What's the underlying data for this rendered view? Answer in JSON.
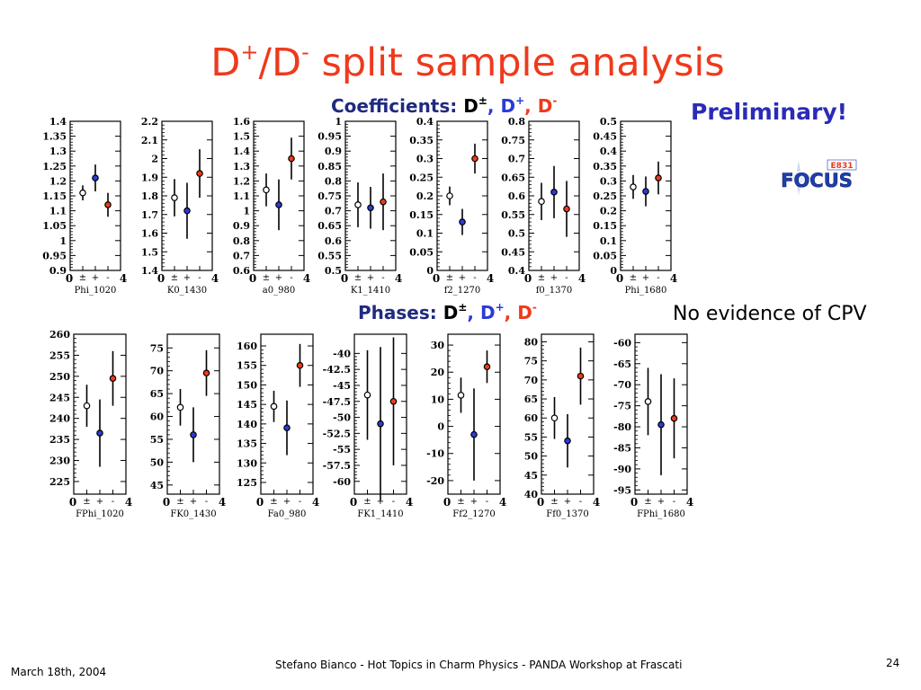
{
  "slide": {
    "title_main": "D",
    "title_sup1": "+",
    "title_mid": "/D",
    "title_sup2": "-",
    "title_tail": " split sample analysis",
    "coefficients_label": "Coefficients: ",
    "phases_label": "Phases: ",
    "d_pm": "D",
    "sup_pm": "±",
    "d_plus": ", D",
    "sup_plus": "+",
    "d_minus": ", D",
    "sup_minus": "-",
    "preliminary": "Preliminary!",
    "no_evidence": "No evidence  of CPV",
    "footer_date": "March 18th, 2004",
    "footer_center": "Stefano Bianco - Hot Topics in Charm Physics - PANDA Workshop at Frascati",
    "page_number": "24",
    "logo_text": "FOCUS",
    "logo_tag": "E831"
  },
  "colors": {
    "title": "#ee3a1c",
    "d_pm_marker": "#ffffff",
    "d_plus_marker": "#2b3bd6",
    "d_minus_marker": "#ee3a1c",
    "preliminary": "#2b2bb8",
    "logo_blue": "#1e3fae"
  },
  "chart_data": [
    {
      "row": "coefficients",
      "type": "scatter",
      "title": "Phi_1020",
      "ylim": [
        0.9,
        1.4
      ],
      "yticks": [
        "0.9",
        "0.95",
        "1",
        "1.05",
        "1.1",
        "1.15",
        "1.2",
        "1.25",
        "1.3",
        "1.35",
        "1.4"
      ],
      "xticks": [
        "0",
        "4"
      ],
      "categories": [
        "±",
        "+",
        "-"
      ],
      "x": [
        1,
        2,
        3
      ],
      "series": [
        {
          "name": "D±",
          "y": 1.16,
          "err": 0.025
        },
        {
          "name": "D+",
          "y": 1.21,
          "err": 0.045
        },
        {
          "name": "D-",
          "y": 1.12,
          "err": 0.04
        }
      ]
    },
    {
      "row": "coefficients",
      "type": "scatter",
      "title": "K0_1430",
      "ylim": [
        1.4,
        2.2
      ],
      "yticks": [
        "1.4",
        "1.5",
        "1.6",
        "1.7",
        "1.8",
        "1.9",
        "2",
        "2.1",
        "2.2"
      ],
      "xticks": [
        "0",
        "4"
      ],
      "categories": [
        "±",
        "+",
        "-"
      ],
      "x": [
        1,
        2,
        3
      ],
      "series": [
        {
          "name": "D±",
          "y": 1.79,
          "err": 0.1
        },
        {
          "name": "D+",
          "y": 1.72,
          "err": 0.15
        },
        {
          "name": "D-",
          "y": 1.92,
          "err": 0.13
        }
      ]
    },
    {
      "row": "coefficients",
      "type": "scatter",
      "title": "a0_980",
      "ylim": [
        0.6,
        1.6
      ],
      "yticks": [
        "0.6",
        "0.7",
        "0.8",
        "0.9",
        "1",
        "1.1",
        "1.2",
        "1.3",
        "1.4",
        "1.5",
        "1.6"
      ],
      "xticks": [
        "0",
        "4"
      ],
      "categories": [
        "±",
        "+",
        "-"
      ],
      "x": [
        1,
        2,
        3
      ],
      "series": [
        {
          "name": "D±",
          "y": 1.14,
          "err": 0.11
        },
        {
          "name": "D+",
          "y": 1.04,
          "err": 0.17
        },
        {
          "name": "D-",
          "y": 1.35,
          "err": 0.14
        }
      ]
    },
    {
      "row": "coefficients",
      "type": "scatter",
      "title": "K1_1410",
      "ylim": [
        0.5,
        1.0
      ],
      "yticks": [
        "0.5",
        "0.55",
        "0.6",
        "0.65",
        "0.7",
        "0.75",
        "0.8",
        "0.85",
        "0.9",
        "0.95",
        "1"
      ],
      "xticks": [
        "0",
        "4"
      ],
      "categories": [
        "±",
        "+",
        "-"
      ],
      "x": [
        1,
        2,
        3
      ],
      "series": [
        {
          "name": "D±",
          "y": 0.72,
          "err": 0.075
        },
        {
          "name": "D+",
          "y": 0.71,
          "err": 0.07
        },
        {
          "name": "D-",
          "y": 0.73,
          "err": 0.095
        }
      ]
    },
    {
      "row": "coefficients",
      "type": "scatter",
      "title": "f2_1270",
      "ylim": [
        0,
        0.4
      ],
      "yticks": [
        "0",
        "0.05",
        "0.1",
        "0.15",
        "0.2",
        "0.25",
        "0.3",
        "0.35",
        "0.4"
      ],
      "xticks": [
        "0",
        "4"
      ],
      "categories": [
        "±",
        "+",
        "-"
      ],
      "x": [
        1,
        2,
        3
      ],
      "series": [
        {
          "name": "D±",
          "y": 0.2,
          "err": 0.025
        },
        {
          "name": "D+",
          "y": 0.13,
          "err": 0.035
        },
        {
          "name": "D-",
          "y": 0.3,
          "err": 0.04
        }
      ]
    },
    {
      "row": "coefficients",
      "type": "scatter",
      "title": "f0_1370",
      "ylim": [
        0.4,
        0.8
      ],
      "yticks": [
        "0.4",
        "0.45",
        "0.5",
        "0.55",
        "0.6",
        "0.65",
        "0.7",
        "0.75",
        "0.8"
      ],
      "xticks": [
        "0",
        "4"
      ],
      "categories": [
        "±",
        "+",
        "-"
      ],
      "x": [
        1,
        2,
        3
      ],
      "series": [
        {
          "name": "D±",
          "y": 0.585,
          "err": 0.05
        },
        {
          "name": "D+",
          "y": 0.61,
          "err": 0.07
        },
        {
          "name": "D-",
          "y": 0.565,
          "err": 0.075
        }
      ]
    },
    {
      "row": "coefficients",
      "type": "scatter",
      "title": "Phi_1680",
      "ylim": [
        0,
        0.5
      ],
      "yticks": [
        "0",
        "0.05",
        "0.1",
        "0.15",
        "0.2",
        "0.25",
        "0.3",
        "0.35",
        "0.4",
        "0.45",
        "0.5"
      ],
      "xticks": [
        "0",
        "4"
      ],
      "categories": [
        "±",
        "+",
        "-"
      ],
      "x": [
        1,
        2,
        3
      ],
      "series": [
        {
          "name": "D±",
          "y": 0.28,
          "err": 0.04
        },
        {
          "name": "D+",
          "y": 0.265,
          "err": 0.05
        },
        {
          "name": "D-",
          "y": 0.31,
          "err": 0.055
        }
      ]
    },
    {
      "row": "phases",
      "type": "scatter",
      "title": "FPhi_1020",
      "ylim": [
        222,
        260
      ],
      "yticks": [
        "225",
        "230",
        "235",
        "240",
        "245",
        "250",
        "255",
        "260"
      ],
      "xticks": [
        "0",
        "4"
      ],
      "categories": [
        "±",
        "+",
        "-"
      ],
      "x": [
        1,
        2,
        3
      ],
      "series": [
        {
          "name": "D±",
          "y": 243,
          "err": 5
        },
        {
          "name": "D+",
          "y": 236.5,
          "err": 8
        },
        {
          "name": "D-",
          "y": 249.5,
          "err": 6.5
        }
      ]
    },
    {
      "row": "phases",
      "type": "scatter",
      "title": "FK0_1430",
      "ylim": [
        43,
        78
      ],
      "yticks": [
        "45",
        "50",
        "55",
        "60",
        "65",
        "70",
        "75"
      ],
      "xticks": [
        "0",
        "4"
      ],
      "categories": [
        "±",
        "+",
        "-"
      ],
      "x": [
        1,
        2,
        3
      ],
      "series": [
        {
          "name": "D±",
          "y": 62,
          "err": 4
        },
        {
          "name": "D+",
          "y": 56,
          "err": 6
        },
        {
          "name": "D-",
          "y": 69.5,
          "err": 5
        }
      ]
    },
    {
      "row": "phases",
      "type": "scatter",
      "title": "Fa0_980",
      "ylim": [
        122,
        163
      ],
      "yticks": [
        "125",
        "130",
        "135",
        "140",
        "145",
        "150",
        "155",
        "160"
      ],
      "xticks": [
        "0",
        "4"
      ],
      "categories": [
        "±",
        "+",
        "-"
      ],
      "x": [
        1,
        2,
        3
      ],
      "series": [
        {
          "name": "D±",
          "y": 144.5,
          "err": 4
        },
        {
          "name": "D+",
          "y": 139,
          "err": 7
        },
        {
          "name": "D-",
          "y": 155,
          "err": 5.5
        }
      ]
    },
    {
      "row": "phases",
      "type": "scatter",
      "title": "FK1_1410",
      "ylim": [
        -62,
        -37
      ],
      "yticks": [
        "-60",
        "-57.5",
        "-55",
        "-52.5",
        "-50",
        "-47.5",
        "-45",
        "-42.5",
        "-40"
      ],
      "xticks": [
        "0",
        "4"
      ],
      "categories": [
        "±",
        "+",
        "-"
      ],
      "x": [
        1,
        2,
        3
      ],
      "series": [
        {
          "name": "D±",
          "y": -46.5,
          "err": 7
        },
        {
          "name": "D+",
          "y": -51,
          "err": 12
        },
        {
          "name": "D-",
          "y": -47.5,
          "err": 10
        }
      ]
    },
    {
      "row": "phases",
      "type": "scatter",
      "title": "Ff2_1270",
      "ylim": [
        -25,
        34
      ],
      "yticks": [
        "-20",
        "-10",
        "0",
        "10",
        "20",
        "30"
      ],
      "xticks": [
        "0",
        "4"
      ],
      "categories": [
        "±",
        "+",
        "-"
      ],
      "x": [
        1,
        2,
        3
      ],
      "series": [
        {
          "name": "D±",
          "y": 11.5,
          "err": 6.5
        },
        {
          "name": "D+",
          "y": -3,
          "err": 17
        },
        {
          "name": "D-",
          "y": 22,
          "err": 6
        }
      ]
    },
    {
      "row": "phases",
      "type": "scatter",
      "title": "Ff0_1370",
      "ylim": [
        40,
        82
      ],
      "yticks": [
        "40",
        "45",
        "50",
        "55",
        "60",
        "65",
        "70",
        "75",
        "80"
      ],
      "xticks": [
        "0",
        "4"
      ],
      "categories": [
        "±",
        "+",
        "-"
      ],
      "x": [
        1,
        2,
        3
      ],
      "series": [
        {
          "name": "D±",
          "y": 60,
          "err": 5.5
        },
        {
          "name": "D+",
          "y": 54,
          "err": 7
        },
        {
          "name": "D-",
          "y": 71,
          "err": 7.5
        }
      ]
    },
    {
      "row": "phases",
      "type": "scatter",
      "title": "FPhi_1680",
      "ylim": [
        -96,
        -58
      ],
      "yticks": [
        "-95",
        "-90",
        "-85",
        "-80",
        "-75",
        "-70",
        "-65",
        "-60"
      ],
      "xticks": [
        "0",
        "4"
      ],
      "categories": [
        "±",
        "+",
        "-"
      ],
      "x": [
        1,
        2,
        3
      ],
      "series": [
        {
          "name": "D±",
          "y": -74,
          "err": 8
        },
        {
          "name": "D+",
          "y": -79.5,
          "err": 12
        },
        {
          "name": "D-",
          "y": -78,
          "err": 9.5
        }
      ]
    }
  ]
}
